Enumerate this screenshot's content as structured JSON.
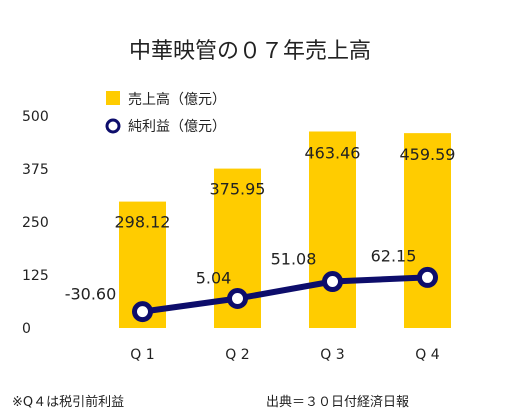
{
  "chart_data": {
    "type": "bar",
    "title": "中華映管の０７年売上高",
    "categories": [
      "Q 1",
      "Q 2",
      "Q 3",
      "Q 4"
    ],
    "ylim": [
      0,
      500
    ],
    "yticks": [
      0,
      125,
      250,
      375,
      500
    ],
    "grid": false,
    "legend_position": "top-left",
    "series": [
      {
        "name": "売上高（億元）",
        "kind": "bar",
        "color": "#FFCC00",
        "values": [
          298.12,
          375.95,
          463.46,
          459.59
        ],
        "labels": [
          "298.12",
          "375.95",
          "463.46",
          "459.59"
        ]
      },
      {
        "name": "純利益（億元）",
        "kind": "line",
        "color": "#0D0D6B",
        "values": [
          -30.6,
          5.04,
          51.08,
          62.15
        ],
        "labels": [
          "-30.60",
          "5.04",
          "51.08",
          "62.15"
        ]
      }
    ]
  },
  "footnote": "※Q４は税引前利益",
  "source": "出典＝３０日付経済日報"
}
